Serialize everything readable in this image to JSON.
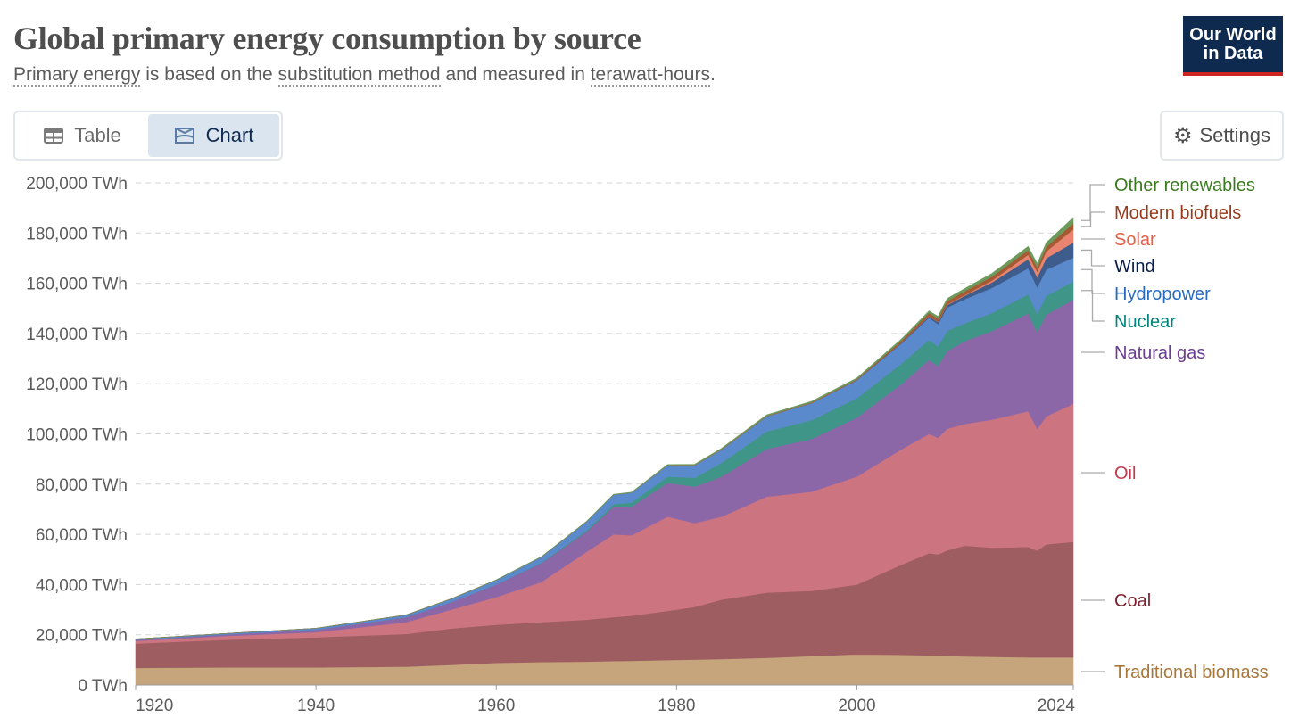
{
  "header": {
    "title": "Global primary energy consumption by source",
    "subtitle_parts": [
      "Primary energy",
      " is based on the ",
      "substitution method",
      " and measured in ",
      "terawatt-hours",
      "."
    ],
    "logo_text": "Our World in Data"
  },
  "toolbar": {
    "table_label": "Table",
    "chart_label": "Chart",
    "settings_label": "Settings",
    "active_tab": "Chart"
  },
  "chart_data": {
    "type": "area",
    "stacked": true,
    "title": "Global primary energy consumption by source",
    "xlabel": "",
    "ylabel": "",
    "unit": "TWh",
    "xlim": [
      1920,
      2024
    ],
    "ylim": [
      0,
      200000
    ],
    "yticks": [
      "0 TWh",
      "20,000 TWh",
      "40,000 TWh",
      "60,000 TWh",
      "80,000 TWh",
      "100,000 TWh",
      "120,000 TWh",
      "140,000 TWh",
      "160,000 TWh",
      "180,000 TWh",
      "200,000 TWh"
    ],
    "xticks": [
      "1920",
      "1940",
      "1960",
      "1980",
      "2000",
      "2024"
    ],
    "grid": "horizontal dashed",
    "legend": "right, labels aligned to series",
    "x": [
      1920,
      1930,
      1940,
      1950,
      1955,
      1960,
      1965,
      1970,
      1973,
      1975,
      1979,
      1982,
      1985,
      1990,
      1995,
      2000,
      2005,
      2008,
      2009,
      2010,
      2012,
      2015,
      2019,
      2020,
      2021,
      2024
    ],
    "series": [
      {
        "name": "Traditional biomass",
        "color": "#c7a57c",
        "label_color": "#a8773b",
        "values": [
          6800,
          7000,
          7000,
          7300,
          8000,
          8800,
          9100,
          9300,
          9500,
          9600,
          9900,
          10100,
          10300,
          10800,
          11500,
          12200,
          12000,
          11800,
          11700,
          11600,
          11400,
          11200,
          11000,
          11000,
          11000,
          11000
        ]
      },
      {
        "name": "Coal",
        "color": "#9d5d61",
        "label_color": "#7e1e2b",
        "values": [
          9700,
          11000,
          12000,
          13000,
          14500,
          15200,
          15900,
          16700,
          17500,
          18000,
          19600,
          21000,
          23700,
          26000,
          26000,
          27800,
          36000,
          40700,
          40300,
          42000,
          44100,
          43500,
          44000,
          42500,
          45000,
          46000
        ]
      },
      {
        "name": "Oil",
        "color": "#cd7481",
        "label_color": "#be3a4e",
        "values": [
          1000,
          1500,
          2000,
          4700,
          7500,
          11000,
          16000,
          27000,
          33000,
          32000,
          37500,
          33400,
          33000,
          38200,
          39500,
          43000,
          46000,
          47500,
          46500,
          48400,
          48500,
          51000,
          54000,
          48500,
          51000,
          55000
        ]
      },
      {
        "name": "Natural gas",
        "color": "#8c67a8",
        "label_color": "#6b3d8f",
        "values": [
          500,
          600,
          1000,
          2000,
          3000,
          5000,
          7500,
          8000,
          11000,
          11400,
          13500,
          14500,
          16000,
          19000,
          21000,
          23500,
          26000,
          29500,
          28500,
          31000,
          33000,
          35300,
          39000,
          38500,
          40500,
          41500
        ]
      },
      {
        "name": "Nuclear",
        "color": "#3f9688",
        "label_color": "#00847e",
        "values": [
          0,
          0,
          0,
          0,
          0,
          10,
          200,
          500,
          1000,
          1600,
          2500,
          3500,
          5500,
          7000,
          7500,
          7700,
          8200,
          8000,
          7800,
          8000,
          7100,
          7200,
          7600,
          7300,
          7500,
          7200
        ]
      },
      {
        "name": "Hydropower",
        "color": "#5a89cc",
        "label_color": "#2a6bc0",
        "values": [
          300,
          400,
          600,
          900,
          1300,
          1800,
          2300,
          3500,
          3800,
          4000,
          4500,
          5000,
          5300,
          6000,
          6800,
          7200,
          8000,
          8800,
          8900,
          9300,
          9600,
          10000,
          10400,
          10600,
          10400,
          9500
        ]
      },
      {
        "name": "Wind",
        "color": "#3f5d8c",
        "label_color": "#0b1f4f",
        "values": [
          0,
          0,
          0,
          0,
          0,
          0,
          0,
          0,
          0,
          0,
          0,
          0,
          0,
          10,
          30,
          100,
          300,
          600,
          800,
          1000,
          1400,
          2200,
          3600,
          4000,
          4600,
          6000
        ]
      },
      {
        "name": "Solar",
        "color": "#e8846f",
        "label_color": "#e3604a",
        "values": [
          0,
          0,
          0,
          0,
          0,
          0,
          0,
          0,
          0,
          0,
          0,
          0,
          0,
          0,
          0,
          5,
          20,
          100,
          100,
          200,
          300,
          700,
          1800,
          2200,
          2700,
          5300
        ]
      },
      {
        "name": "Modern biofuels",
        "color": "#a65a34",
        "label_color": "#99391b",
        "values": [
          0,
          0,
          0,
          0,
          0,
          0,
          0,
          0,
          0,
          0,
          50,
          100,
          150,
          200,
          250,
          300,
          800,
          1200,
          1300,
          1400,
          1500,
          1600,
          1800,
          1700,
          1800,
          2300
        ]
      },
      {
        "name": "Other renewables",
        "color": "#6c9a5c",
        "label_color": "#3a7a1e",
        "values": [
          0,
          0,
          0,
          0,
          0,
          100,
          120,
          150,
          180,
          200,
          250,
          300,
          350,
          400,
          450,
          500,
          700,
          800,
          900,
          1000,
          1100,
          1300,
          1500,
          1600,
          1700,
          2400
        ]
      }
    ]
  }
}
